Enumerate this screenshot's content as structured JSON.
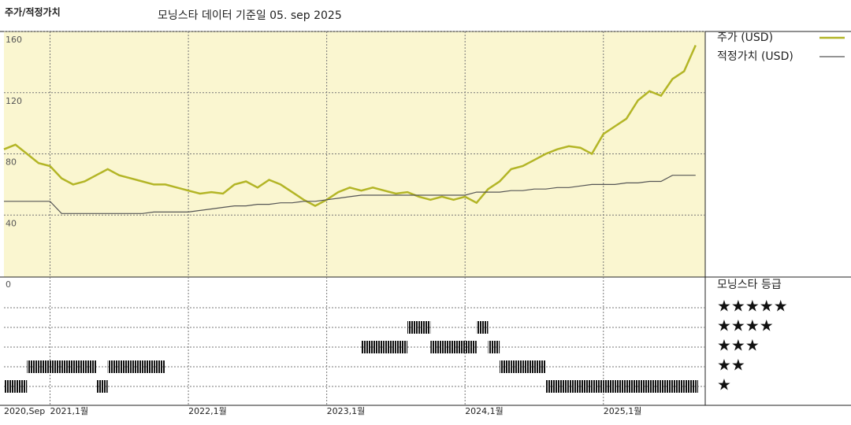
{
  "chart_data": [
    {
      "type": "line",
      "title": "주가/적정가치",
      "subtitle": "모닝스타 데이터 기준일 05. sep 2025",
      "x": [
        "2020-09",
        "2020-10",
        "2020-11",
        "2020-12",
        "2021-01",
        "2021-02",
        "2021-03",
        "2021-04",
        "2021-05",
        "2021-06",
        "2021-07",
        "2021-08",
        "2021-09",
        "2021-10",
        "2021-11",
        "2021-12",
        "2022-01",
        "2022-02",
        "2022-03",
        "2022-04",
        "2022-05",
        "2022-06",
        "2022-07",
        "2022-08",
        "2022-09",
        "2022-10",
        "2022-11",
        "2022-12",
        "2023-01",
        "2023-02",
        "2023-03",
        "2023-04",
        "2023-05",
        "2023-06",
        "2023-07",
        "2023-08",
        "2023-09",
        "2023-10",
        "2023-11",
        "2023-12",
        "2024-01",
        "2024-02",
        "2024-03",
        "2024-04",
        "2024-05",
        "2024-06",
        "2024-07",
        "2024-08",
        "2024-09",
        "2024-10",
        "2024-11",
        "2024-12",
        "2025-01",
        "2025-02",
        "2025-03",
        "2025-04",
        "2025-05",
        "2025-06",
        "2025-07",
        "2025-08",
        "2025-09"
      ],
      "series": [
        {
          "name": "주가 (USD)",
          "color": "#b3b526",
          "values": [
            83,
            86,
            80,
            74,
            72,
            64,
            60,
            62,
            66,
            70,
            66,
            64,
            62,
            60,
            60,
            58,
            56,
            54,
            55,
            54,
            60,
            62,
            58,
            63,
            60,
            55,
            50,
            46,
            50,
            55,
            58,
            56,
            58,
            56,
            54,
            55,
            52,
            50,
            52,
            50,
            52,
            48,
            57,
            62,
            70,
            72,
            76,
            80,
            83,
            85,
            84,
            80,
            93,
            98,
            103,
            115,
            121,
            118,
            129,
            134,
            151
          ]
        },
        {
          "name": "적정가치 (USD)",
          "color": "#555555",
          "values": [
            49,
            49,
            49,
            49,
            49,
            41,
            41,
            41,
            41,
            41,
            41,
            41,
            41,
            42,
            42,
            42,
            42,
            43,
            44,
            45,
            46,
            46,
            47,
            47,
            48,
            48,
            49,
            49,
            50,
            51,
            52,
            53,
            53,
            53,
            53,
            53,
            53,
            53,
            53,
            53,
            53,
            55,
            55,
            55,
            56,
            56,
            57,
            57,
            58,
            58,
            59,
            60,
            60,
            60,
            61,
            61,
            62,
            62,
            66,
            66,
            66
          ]
        }
      ],
      "ylim": [
        0,
        160
      ],
      "yticks": [
        40,
        80,
        120,
        160
      ],
      "xticks": [
        {
          "value": "2020-09",
          "label": "2020,Sep"
        },
        {
          "value": "2021-01",
          "label": "2021,1월"
        },
        {
          "value": "2022-01",
          "label": "2022,1월"
        },
        {
          "value": "2023-01",
          "label": "2023,1월"
        },
        {
          "value": "2024-01",
          "label": "2024,1월"
        },
        {
          "value": "2025-01",
          "label": "2025,1월"
        }
      ],
      "grid": true
    },
    {
      "type": "rating",
      "title": "모닝스타 등급",
      "corner_label": "0",
      "color": "#111111",
      "values": [
        1,
        1,
        2,
        2,
        2,
        2,
        2,
        2,
        1,
        2,
        2,
        2,
        2,
        2,
        null,
        null,
        null,
        null,
        null,
        null,
        null,
        null,
        null,
        null,
        null,
        null,
        null,
        null,
        null,
        null,
        null,
        3,
        3,
        3,
        3,
        4,
        4,
        3,
        3,
        3,
        3,
        4,
        3,
        2,
        2,
        2,
        2,
        1,
        1,
        1,
        1,
        1,
        1,
        1,
        1,
        1,
        1,
        1,
        1,
        1,
        1
      ],
      "ylim": [
        0,
        5
      ],
      "yticks": [
        {
          "value": 5,
          "label": "★★★★★"
        },
        {
          "value": 4,
          "label": "★★★★"
        },
        {
          "value": 3,
          "label": "★★★"
        },
        {
          "value": 2,
          "label": "★★"
        },
        {
          "value": 1,
          "label": "★"
        }
      ]
    }
  ]
}
